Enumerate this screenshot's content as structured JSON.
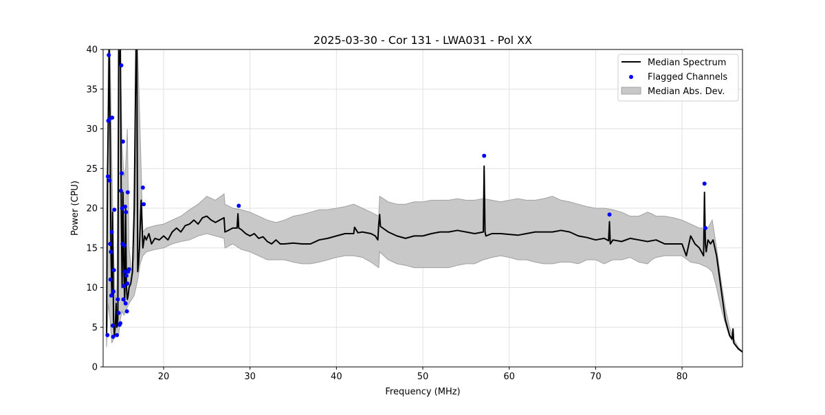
{
  "chart_data": {
    "type": "line",
    "title": "2025-03-30 - Cor 131 - LWA031 - Pol XX",
    "xlabel": "Frequency (MHz)",
    "ylabel": "Power (CPU)",
    "xlim": [
      13.0,
      87.0
    ],
    "ylim": [
      0,
      40
    ],
    "xticks": [
      20,
      30,
      40,
      50,
      60,
      70,
      80
    ],
    "yticks": [
      0,
      5,
      10,
      15,
      20,
      25,
      30,
      35,
      40
    ],
    "grid": true,
    "legend_position": "top-right",
    "legend": [
      "Median Spectrum",
      "Flagged Channels",
      "Median Abs. Dev."
    ],
    "colors": {
      "line": "#000000",
      "flagged": "#0000ff",
      "band_fill": "#c8c8c8",
      "band_edge": "#a0a0a0",
      "grid": "#e0e0e0"
    },
    "series": [
      {
        "name": "Median Spectrum",
        "x": [
          13.4,
          13.5,
          13.6,
          13.7,
          13.8,
          13.9,
          14.0,
          14.1,
          14.2,
          14.3,
          14.4,
          14.5,
          14.6,
          14.7,
          14.8,
          14.9,
          15.0,
          15.1,
          15.2,
          15.3,
          15.4,
          15.5,
          15.6,
          15.7,
          15.8,
          15.9,
          16.0,
          16.2,
          16.4,
          16.6,
          16.8,
          16.9,
          17.0,
          17.1,
          17.2,
          17.4,
          17.6,
          17.8,
          18.0,
          18.3,
          18.6,
          19.0,
          19.5,
          20.0,
          20.5,
          21.0,
          21.5,
          22.0,
          22.5,
          23.0,
          23.5,
          24.0,
          24.5,
          25.0,
          25.5,
          26.0,
          26.5,
          27.0,
          27.1,
          27.5,
          28.0,
          28.5,
          28.6,
          28.7,
          29.0,
          29.5,
          30.0,
          30.5,
          31.0,
          31.5,
          32.0,
          32.5,
          33.0,
          33.5,
          34.0,
          35.0,
          36.0,
          37.0,
          38.0,
          39.0,
          40.0,
          41.0,
          42.0,
          42.1,
          42.5,
          43.0,
          44.0,
          44.5,
          44.8,
          44.9,
          45.0,
          45.1,
          46.0,
          47.0,
          48.0,
          49.0,
          50.0,
          51.0,
          52.0,
          53.0,
          54.0,
          55.0,
          56.0,
          57.0,
          57.1,
          57.2,
          57.3,
          58.0,
          59.0,
          60.0,
          61.0,
          62.0,
          63.0,
          64.0,
          65.0,
          66.0,
          67.0,
          68.0,
          69.0,
          70.0,
          71.0,
          71.5,
          71.6,
          71.7,
          72.0,
          73.0,
          74.0,
          75.0,
          76.0,
          77.0,
          78.0,
          79.0,
          80.0,
          80.5,
          81.0,
          81.5,
          82.0,
          82.5,
          82.6,
          82.7,
          82.8,
          83.0,
          83.3,
          83.6,
          84.0,
          84.5,
          85.0,
          85.5,
          85.8,
          85.9,
          86.0,
          86.5,
          87.0
        ],
        "y": [
          4.0,
          24.0,
          31.0,
          40.0,
          30.0,
          15.0,
          9.0,
          19.5,
          6.0,
          4.0,
          5.0,
          8.0,
          5.0,
          6.0,
          40.0,
          38.0,
          40.0,
          20.0,
          10.0,
          22.0,
          12.0,
          8.0,
          20.0,
          10.0,
          8.5,
          9.0,
          10.0,
          10.5,
          12.0,
          20.0,
          40.0,
          40.0,
          12.0,
          13.0,
          15.0,
          21.0,
          15.0,
          16.5,
          16.0,
          16.8,
          15.5,
          16.2,
          16.0,
          16.5,
          16.0,
          17.0,
          17.5,
          17.0,
          17.8,
          18.0,
          18.5,
          18.0,
          18.8,
          19.0,
          18.5,
          18.2,
          18.5,
          18.8,
          17.0,
          17.2,
          17.5,
          17.5,
          19.3,
          17.5,
          17.3,
          16.8,
          16.5,
          16.8,
          16.2,
          16.4,
          15.8,
          15.5,
          16.0,
          15.5,
          15.5,
          15.6,
          15.5,
          15.5,
          16.0,
          16.2,
          16.5,
          16.8,
          16.8,
          17.6,
          16.9,
          17.0,
          16.8,
          16.5,
          16.0,
          18.0,
          19.2,
          17.7,
          17.0,
          16.5,
          16.2,
          16.5,
          16.5,
          16.8,
          17.0,
          17.0,
          17.2,
          17.0,
          16.8,
          17.0,
          25.3,
          17.0,
          16.5,
          16.8,
          16.8,
          16.7,
          16.6,
          16.8,
          17.0,
          17.0,
          17.0,
          17.2,
          17.0,
          16.5,
          16.3,
          16.0,
          16.2,
          15.9,
          18.3,
          15.5,
          16.0,
          15.8,
          16.2,
          16.0,
          15.8,
          16.0,
          15.5,
          15.5,
          15.5,
          14.0,
          16.5,
          15.5,
          15.0,
          14.0,
          22.0,
          15.5,
          14.5,
          16.0,
          15.5,
          16.0,
          14.0,
          10.0,
          6.0,
          4.0,
          3.5,
          4.8,
          3.0,
          2.3,
          1.9
        ]
      },
      {
        "name": "Median Abs. Dev.",
        "x": [
          13.4,
          13.6,
          13.8,
          14.0,
          14.2,
          14.4,
          14.6,
          14.8,
          15.0,
          15.2,
          15.4,
          15.6,
          15.8,
          16.0,
          16.3,
          16.6,
          17.0,
          17.3,
          17.6,
          18.0,
          19.0,
          20.0,
          21.0,
          22.0,
          23.0,
          24.0,
          25.0,
          26.0,
          27.0,
          27.1,
          28.0,
          29.0,
          30.0,
          31.0,
          32.0,
          33.0,
          34.0,
          35.0,
          36.0,
          37.0,
          38.0,
          39.0,
          40.0,
          41.0,
          42.0,
          43.0,
          44.0,
          44.9,
          45.0,
          46.0,
          47.0,
          48.0,
          49.0,
          50.0,
          51.0,
          52.0,
          53.0,
          54.0,
          55.0,
          56.0,
          57.0,
          58.0,
          59.0,
          60.0,
          61.0,
          62.0,
          63.0,
          64.0,
          65.0,
          66.0,
          67.0,
          68.0,
          69.0,
          70.0,
          71.0,
          72.0,
          73.0,
          74.0,
          75.0,
          76.0,
          76.5,
          77.0,
          78.0,
          79.0,
          80.0,
          81.0,
          82.0,
          83.0,
          83.5,
          84.0,
          84.5,
          85.0,
          85.5,
          86.0,
          86.5,
          87.0
        ],
        "low": [
          2.5,
          8.0,
          6.0,
          3.0,
          3.5,
          3.8,
          4.0,
          4.0,
          6.0,
          7.0,
          6.5,
          7.0,
          7.5,
          8.0,
          8.5,
          9.0,
          11.0,
          13.0,
          14.0,
          14.5,
          14.8,
          15.0,
          15.5,
          15.8,
          16.0,
          16.5,
          16.8,
          16.5,
          16.2,
          15.0,
          15.5,
          14.8,
          14.5,
          14.0,
          13.5,
          13.5,
          13.5,
          13.2,
          13.0,
          13.0,
          13.2,
          13.5,
          13.8,
          14.0,
          14.0,
          13.8,
          13.2,
          12.5,
          14.5,
          13.5,
          13.0,
          12.8,
          12.5,
          12.5,
          12.5,
          12.5,
          12.5,
          12.8,
          13.0,
          13.0,
          13.5,
          13.8,
          14.0,
          13.8,
          13.5,
          13.5,
          13.2,
          13.0,
          13.0,
          13.2,
          13.2,
          13.0,
          13.5,
          13.5,
          13.0,
          13.5,
          13.5,
          13.8,
          13.2,
          13.0,
          13.5,
          13.8,
          14.0,
          14.0,
          14.0,
          13.2,
          13.0,
          12.5,
          12.0,
          10.0,
          7.5,
          5.5,
          3.8,
          3.0,
          2.2,
          1.8
        ],
        "high": [
          8.0,
          40.0,
          40.0,
          26.0,
          15.0,
          8.0,
          10.0,
          40.0,
          40.0,
          28.0,
          24.0,
          25.0,
          30.0,
          15.0,
          12.0,
          14.0,
          40.0,
          29.0,
          17.0,
          17.5,
          17.8,
          18.0,
          18.5,
          19.0,
          19.8,
          20.5,
          21.5,
          21.0,
          21.8,
          20.5,
          20.0,
          19.8,
          19.5,
          19.0,
          18.5,
          18.2,
          18.5,
          19.0,
          19.2,
          19.5,
          19.8,
          19.8,
          20.0,
          20.2,
          20.5,
          20.0,
          19.5,
          19.0,
          21.5,
          20.8,
          20.5,
          20.5,
          20.8,
          20.8,
          21.0,
          21.0,
          21.0,
          21.2,
          21.0,
          21.0,
          21.2,
          21.0,
          20.8,
          21.0,
          21.2,
          21.0,
          21.0,
          21.2,
          21.5,
          21.0,
          20.8,
          20.5,
          20.2,
          20.0,
          20.0,
          19.8,
          19.5,
          19.0,
          19.0,
          19.5,
          19.3,
          19.0,
          19.0,
          18.8,
          18.5,
          18.0,
          17.5,
          17.5,
          18.5,
          15.0,
          11.0,
          7.5,
          5.0,
          3.5,
          2.5,
          1.9
        ]
      },
      {
        "name": "Flagged Channels",
        "x": [
          13.5,
          13.55,
          13.6,
          13.65,
          13.7,
          13.75,
          13.8,
          13.85,
          13.9,
          13.95,
          14.0,
          14.05,
          14.1,
          14.15,
          14.2,
          14.25,
          14.3,
          14.6,
          14.7,
          14.8,
          14.9,
          15.0,
          15.05,
          15.1,
          15.15,
          15.2,
          15.25,
          15.3,
          15.35,
          15.4,
          15.45,
          15.5,
          15.55,
          15.6,
          15.65,
          15.7,
          15.75,
          15.8,
          15.85,
          15.9,
          16.0,
          17.6,
          17.7,
          28.7,
          57.1,
          71.6,
          82.6,
          82.7
        ],
        "y": [
          4.0,
          24.0,
          31.0,
          39.3,
          31.2,
          23.5,
          15.5,
          11.0,
          14.5,
          9.0,
          17.0,
          31.4,
          5.2,
          3.8,
          9.5,
          12.2,
          19.8,
          4.0,
          8.5,
          6.8,
          5.3,
          5.5,
          22.2,
          38.0,
          24.4,
          20.0,
          15.5,
          28.4,
          8.5,
          10.2,
          15.3,
          12.0,
          20.2,
          8.0,
          19.5,
          11.5,
          7.0,
          10.5,
          22.0,
          12.0,
          12.3,
          22.6,
          20.5,
          20.3,
          26.6,
          19.2,
          23.1,
          17.5
        ]
      }
    ]
  }
}
